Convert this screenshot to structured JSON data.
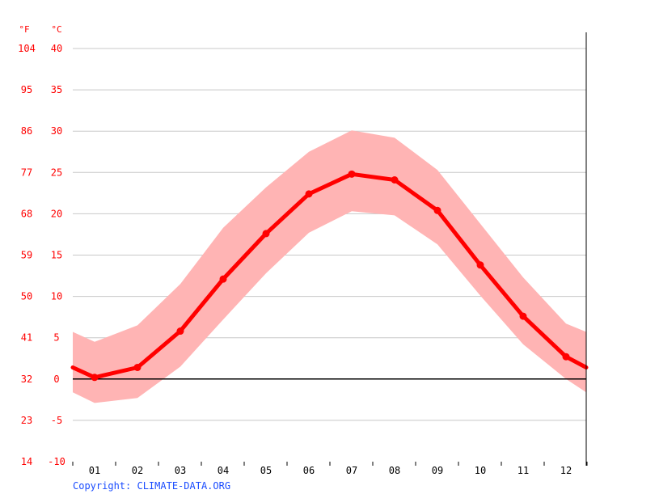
{
  "chart_data": {
    "type": "area",
    "x": [
      "01",
      "02",
      "03",
      "04",
      "05",
      "06",
      "07",
      "08",
      "09",
      "10",
      "11",
      "12"
    ],
    "series": [
      {
        "kind": "band-upper",
        "values": [
          4.5,
          6.5,
          11.5,
          18.3,
          23.2,
          27.5,
          30.1,
          29.2,
          25.3,
          18.8,
          12.3,
          6.7
        ]
      },
      {
        "kind": "mean-line",
        "values": [
          0.2,
          1.4,
          5.8,
          12.1,
          17.6,
          22.4,
          24.8,
          24.1,
          20.4,
          13.8,
          7.6,
          2.7
        ]
      },
      {
        "kind": "band-lower",
        "values": [
          -2.9,
          -2.3,
          1.5,
          7.2,
          12.8,
          17.7,
          20.3,
          19.8,
          16.3,
          10.1,
          4.2,
          0.0
        ]
      }
    ],
    "edge_values": {
      "left": {
        "upper": 5.7,
        "mean": 1.4,
        "lower": -1.6
      },
      "right": {
        "upper": 5.7,
        "mean": 1.4,
        "lower": -1.6
      }
    },
    "ylim": [
      -10,
      40
    ],
    "celsius_ticks": [
      "-10",
      "-5",
      "0",
      "5",
      "10",
      "15",
      "20",
      "25",
      "30",
      "35",
      "40"
    ],
    "fahrenheit_ticks": [
      "14",
      "23",
      "32",
      "41",
      "50",
      "59",
      "68",
      "77",
      "86",
      "95",
      "104"
    ],
    "unit_f": "°F",
    "unit_c": "°C",
    "grid": true,
    "zero_line": true,
    "colors": {
      "line": "#ff0000",
      "band": "#ffb4b4",
      "grid": "#c8c8c8",
      "zero": "#000000",
      "label": "#ff0000",
      "copyright": "#1a4cff"
    }
  },
  "copyright": "Copyright: CLIMATE-DATA.ORG"
}
